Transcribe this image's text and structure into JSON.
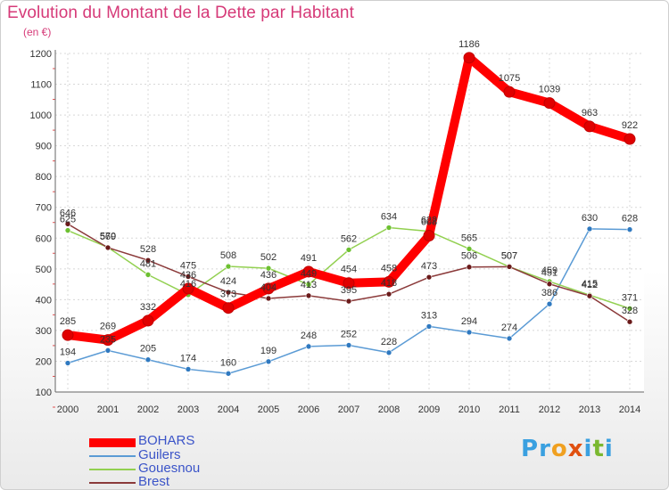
{
  "title": "Evolution du Montant de la Dette par Habitant",
  "subtitle": "(en €)",
  "logo": {
    "text": "Proxiti",
    "letters": [
      "P",
      "r",
      "o",
      "x",
      "i",
      "t",
      "i"
    ],
    "colors": [
      "#3aa0e0",
      "#3aa0e0",
      "#f0a020",
      "#e05010",
      "#3aa0e0",
      "#7ab830",
      "#3aa0e0"
    ]
  },
  "chart_data": {
    "type": "line",
    "categories": [
      "2000",
      "2001",
      "2002",
      "2003",
      "2004",
      "2005",
      "2006",
      "2007",
      "2008",
      "2009",
      "2010",
      "2011",
      "2012",
      "2013",
      "2014"
    ],
    "ylim": [
      100,
      1200
    ],
    "yticks": [
      "100",
      "200",
      "300",
      "400",
      "500",
      "600",
      "700",
      "800",
      "900",
      "1000",
      "1100",
      "1200"
    ],
    "grid": true,
    "legend_position": "bottom-left",
    "series": [
      {
        "name": "Guilers",
        "color": "#5b9bd5",
        "point": "#2f79c0",
        "values": [
          194,
          235,
          205,
          174,
          160,
          199,
          248,
          252,
          228,
          313,
          294,
          274,
          386,
          630,
          628
        ],
        "labels": [
          "194",
          "235",
          "205",
          "174",
          "160",
          "199",
          "248",
          "252",
          "228",
          "313",
          "294",
          "274",
          "386",
          "630",
          "628"
        ]
      },
      {
        "name": "Gouesnou",
        "color": "#92d050",
        "point": "#6cc030",
        "values": [
          625,
          570,
          481,
          416,
          508,
          502,
          449,
          562,
          634,
          622,
          565,
          507,
          459,
          415,
          371
        ],
        "labels": [
          "625",
          "570",
          "481",
          "416",
          "508",
          "502",
          "449",
          "562",
          "634",
          "622",
          "565",
          "507",
          "459",
          "415",
          "371"
        ]
      },
      {
        "name": "Brest",
        "color": "#8b3a3a",
        "point": "#6a1a1a",
        "values": [
          646,
          569,
          528,
          475,
          424,
          404,
          413,
          395,
          418,
          473,
          506,
          507,
          451,
          412,
          328
        ],
        "labels": [
          "646",
          "569",
          "528",
          "475",
          "424",
          "404",
          "413",
          "395",
          "418",
          "473",
          "506",
          "507",
          "451",
          "412",
          "328"
        ]
      },
      {
        "name": "BOHARS",
        "color": "#ff0000",
        "point": "#e00000",
        "values": [
          285,
          269,
          332,
          436,
          373,
          436,
          491,
          454,
          458,
          608,
          1186,
          1075,
          1039,
          963,
          922
        ],
        "labels": [
          "285",
          "269",
          "332",
          "436",
          "373",
          "436",
          "491",
          "454",
          "458",
          "608",
          "1186",
          "1075",
          "1039",
          "963",
          "922"
        ]
      }
    ]
  },
  "legend": [
    {
      "name": "BOHARS",
      "color": "#ff0000",
      "width": 10
    },
    {
      "name": "Guilers",
      "color": "#5b9bd5",
      "width": 2
    },
    {
      "name": "Gouesnou",
      "color": "#92d050",
      "width": 2
    },
    {
      "name": "Brest",
      "color": "#8b3a3a",
      "width": 2
    }
  ]
}
